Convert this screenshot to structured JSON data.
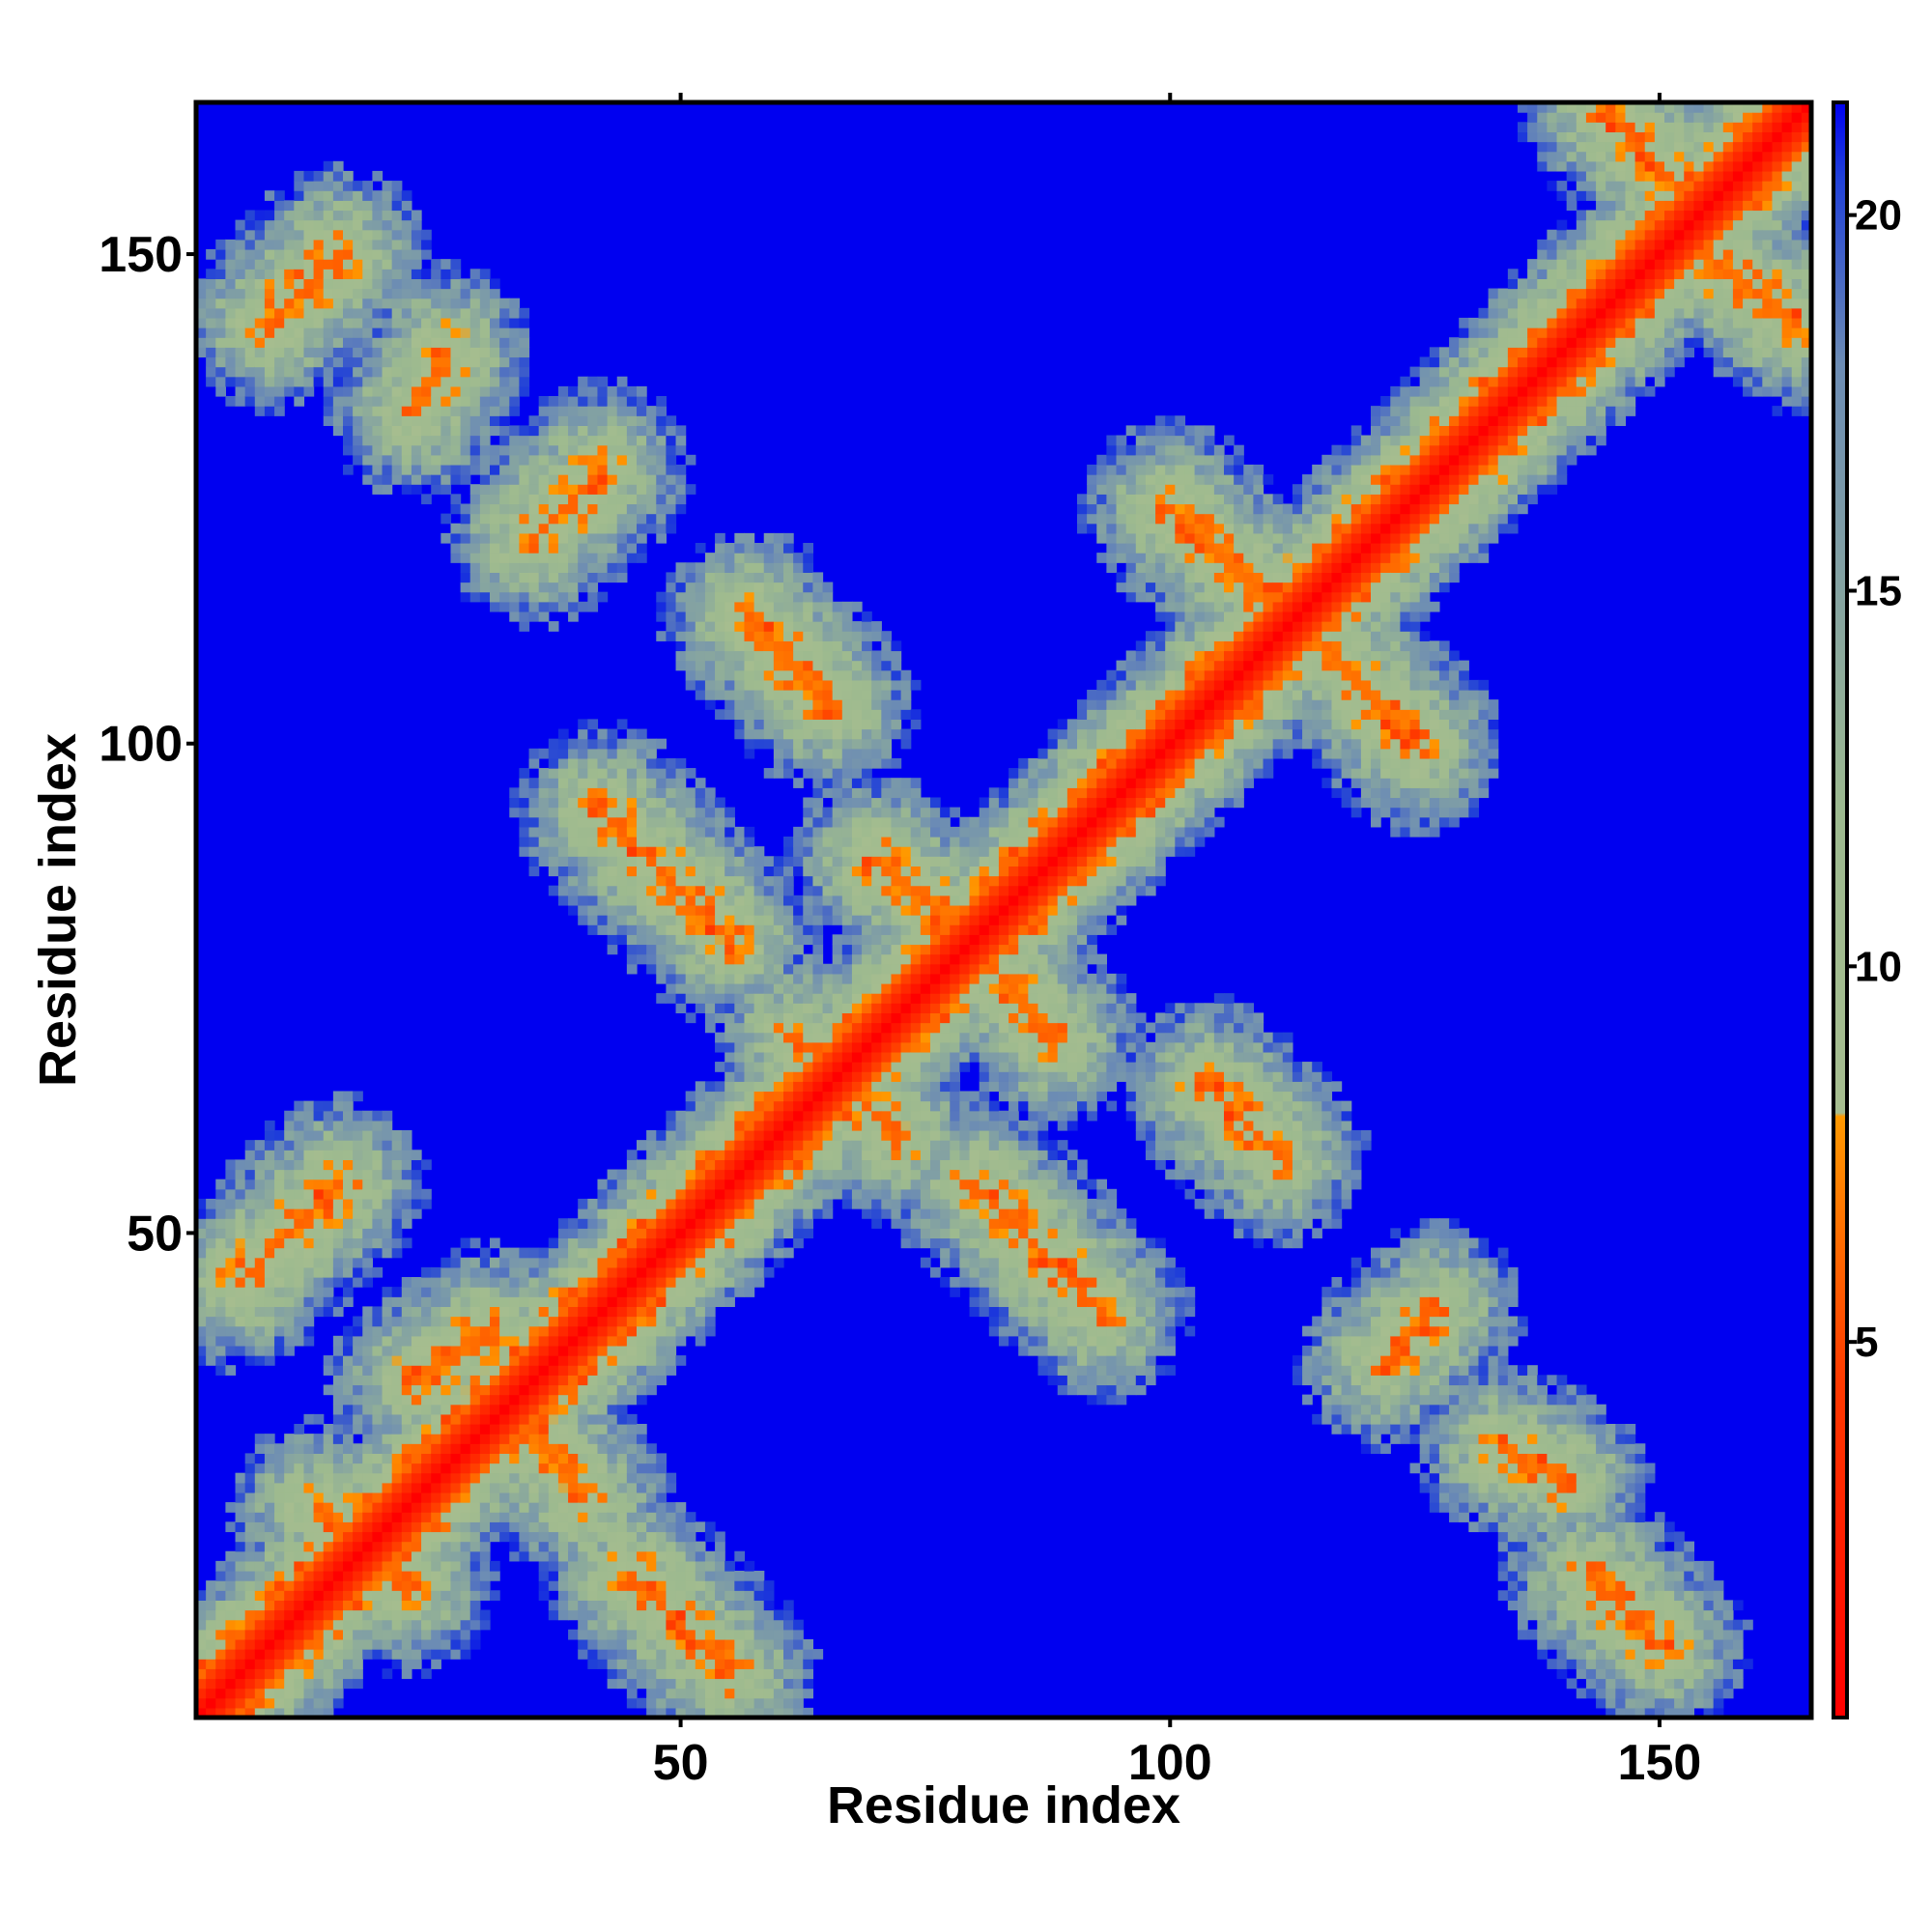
{
  "chart_data": {
    "type": "heatmap",
    "title": "",
    "xlabel": "Residue index",
    "ylabel": "Residue index",
    "n_residues": 165,
    "xlim": [
      1,
      165
    ],
    "ylim": [
      1,
      165
    ],
    "x_ticks": [
      50,
      100,
      150
    ],
    "y_ticks": [
      50,
      100,
      150
    ],
    "x_tick_labels": [
      "50",
      "100",
      "150"
    ],
    "y_tick_labels": [
      "50",
      "100",
      "150"
    ],
    "colorbar": {
      "range": [
        0,
        21.5
      ],
      "ticks": [
        5,
        10,
        15,
        20
      ],
      "tick_labels": [
        "5",
        "10",
        "15",
        "20"
      ],
      "placement": "right",
      "stops": [
        {
          "value": 0,
          "color": "#ff0000"
        },
        {
          "value": 4.5,
          "color": "#ff3a00"
        },
        {
          "value": 8,
          "color": "#ff9900"
        },
        {
          "value": 8.05,
          "color": "#a6bd8f"
        },
        {
          "value": 12,
          "color": "#9dba8f"
        },
        {
          "value": 18,
          "color": "#6c8cb4"
        },
        {
          "value": 20.5,
          "color": "#2040d8"
        },
        {
          "value": 21.5,
          "color": "#0000f0"
        }
      ]
    },
    "background_color": "#0000f0",
    "contact_bands": [
      {
        "kind": "diagonal",
        "x0": 1,
        "y0": 1,
        "x1": 165,
        "y1": 165,
        "value": 0
      },
      {
        "kind": "contact",
        "x0": 45,
        "y0": 15,
        "x1": 55,
        "y1": 5,
        "value": 6
      },
      {
        "kind": "contact",
        "x0": 5,
        "y0": 45,
        "x1": 15,
        "y1": 55,
        "value": 6
      },
      {
        "kind": "contact",
        "x0": 143,
        "y0": 15,
        "x1": 150,
        "y1": 8,
        "value": 6
      },
      {
        "kind": "contact",
        "x0": 8,
        "y0": 143,
        "x1": 15,
        "y1": 150,
        "value": 6
      },
      {
        "kind": "contact",
        "x0": 35,
        "y0": 30,
        "x1": 40,
        "y1": 23,
        "value": 6
      },
      {
        "kind": "contact",
        "x0": 23,
        "y0": 35,
        "x1": 30,
        "y1": 40,
        "value": 6
      },
      {
        "kind": "contact",
        "x0": 13,
        "y0": 22,
        "x1": 22,
        "y1": 14,
        "value": 6
      },
      {
        "kind": "contact",
        "x0": 42,
        "y0": 93,
        "x1": 55,
        "y1": 80,
        "value": 6
      },
      {
        "kind": "contact",
        "x0": 80,
        "y0": 55,
        "x1": 93,
        "y1": 42,
        "value": 6
      },
      {
        "kind": "contact",
        "x0": 62,
        "y0": 70,
        "x1": 72,
        "y1": 60,
        "value": 6
      },
      {
        "kind": "contact",
        "x0": 70,
        "y0": 88,
        "x1": 80,
        "y1": 80,
        "value": 6
      },
      {
        "kind": "contact",
        "x0": 82,
        "y0": 77,
        "x1": 88,
        "y1": 70,
        "value": 6
      },
      {
        "kind": "contact",
        "x0": 57,
        "y0": 113,
        "x1": 65,
        "y1": 104,
        "value": 6
      },
      {
        "kind": "contact",
        "x0": 100,
        "y0": 124,
        "x1": 113,
        "y1": 112,
        "value": 6
      },
      {
        "kind": "contact",
        "x0": 113,
        "y0": 113,
        "x1": 125,
        "y1": 100,
        "value": 6
      },
      {
        "kind": "contact",
        "x0": 104,
        "y0": 65,
        "x1": 111,
        "y1": 58,
        "value": 6
      },
      {
        "kind": "contact",
        "x0": 122,
        "y0": 37,
        "x1": 127,
        "y1": 42,
        "value": 6
      },
      {
        "kind": "contact",
        "x0": 134,
        "y0": 28,
        "x1": 140,
        "y1": 25,
        "value": 6
      },
      {
        "kind": "contact",
        "x0": 35,
        "y0": 121,
        "x1": 42,
        "y1": 128,
        "value": 6
      },
      {
        "kind": "contact",
        "x0": 23,
        "y0": 134,
        "x1": 26,
        "y1": 140,
        "value": 6
      },
      {
        "kind": "contact",
        "x0": 145,
        "y0": 164,
        "x1": 152,
        "y1": 157,
        "value": 6
      },
      {
        "kind": "contact",
        "x0": 152,
        "y0": 152,
        "x1": 164,
        "y1": 143,
        "value": 6
      }
    ]
  }
}
